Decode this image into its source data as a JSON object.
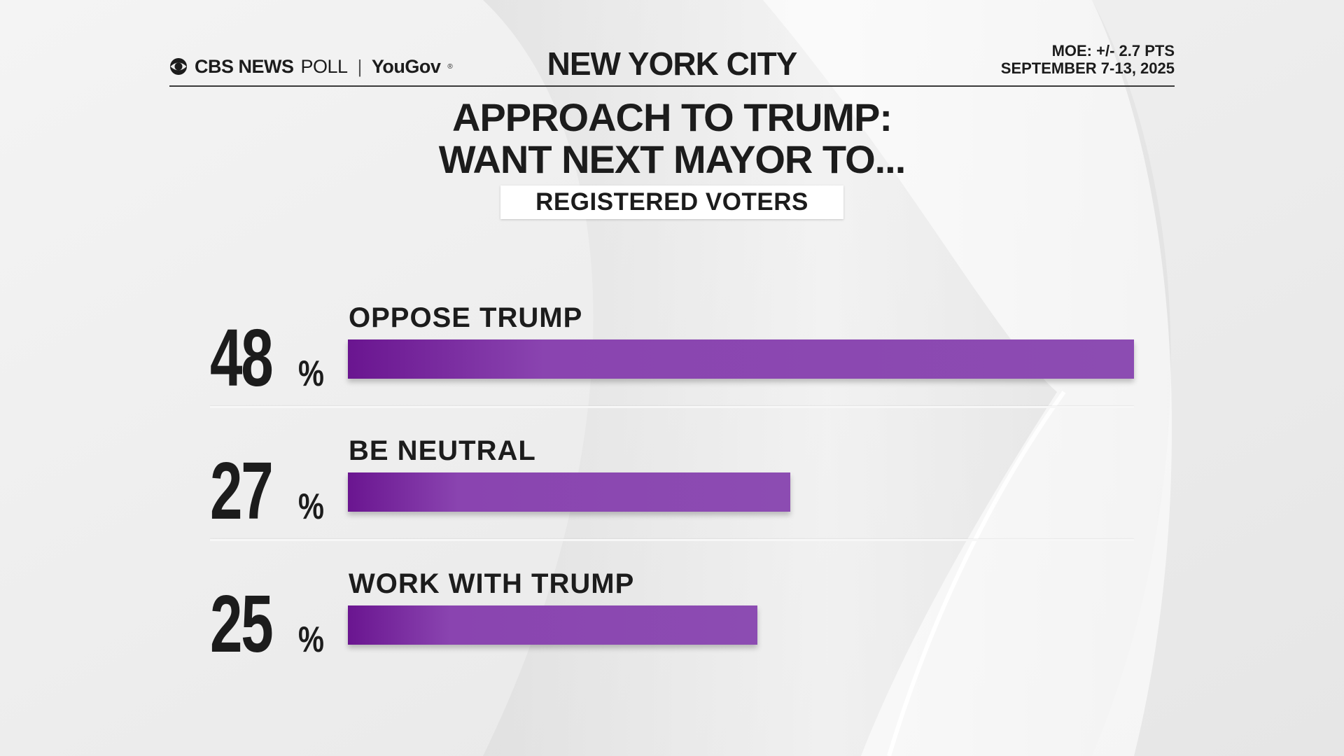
{
  "header": {
    "network": "CBS NEWS",
    "poll_word": "POLL",
    "separator": "|",
    "partner": "YouGov",
    "registered_mark": "®",
    "location": "NEW YORK CITY",
    "moe": "MOE: +/- 2.7 PTS",
    "dates": "SEPTEMBER 7-13, 2025"
  },
  "icons": {
    "network_logo": "cbs-eye-icon"
  },
  "colors": {
    "bar": "#8c4cb2",
    "bar_dark": "#6a1590",
    "text": "#1c1c1c"
  },
  "chart_data": {
    "type": "bar",
    "orientation": "horizontal",
    "title_line1": "APPROACH TO TRUMP:",
    "title_line2": "WANT NEXT MAYOR TO...",
    "subtitle": "REGISTERED VOTERS",
    "categories": [
      "OPPOSE TRUMP",
      "BE NEUTRAL",
      "WORK WITH TRUMP"
    ],
    "values": [
      48,
      27,
      25
    ],
    "value_labels": [
      "48",
      "27",
      "25"
    ],
    "unit": "%",
    "xlim": [
      0,
      48
    ]
  }
}
